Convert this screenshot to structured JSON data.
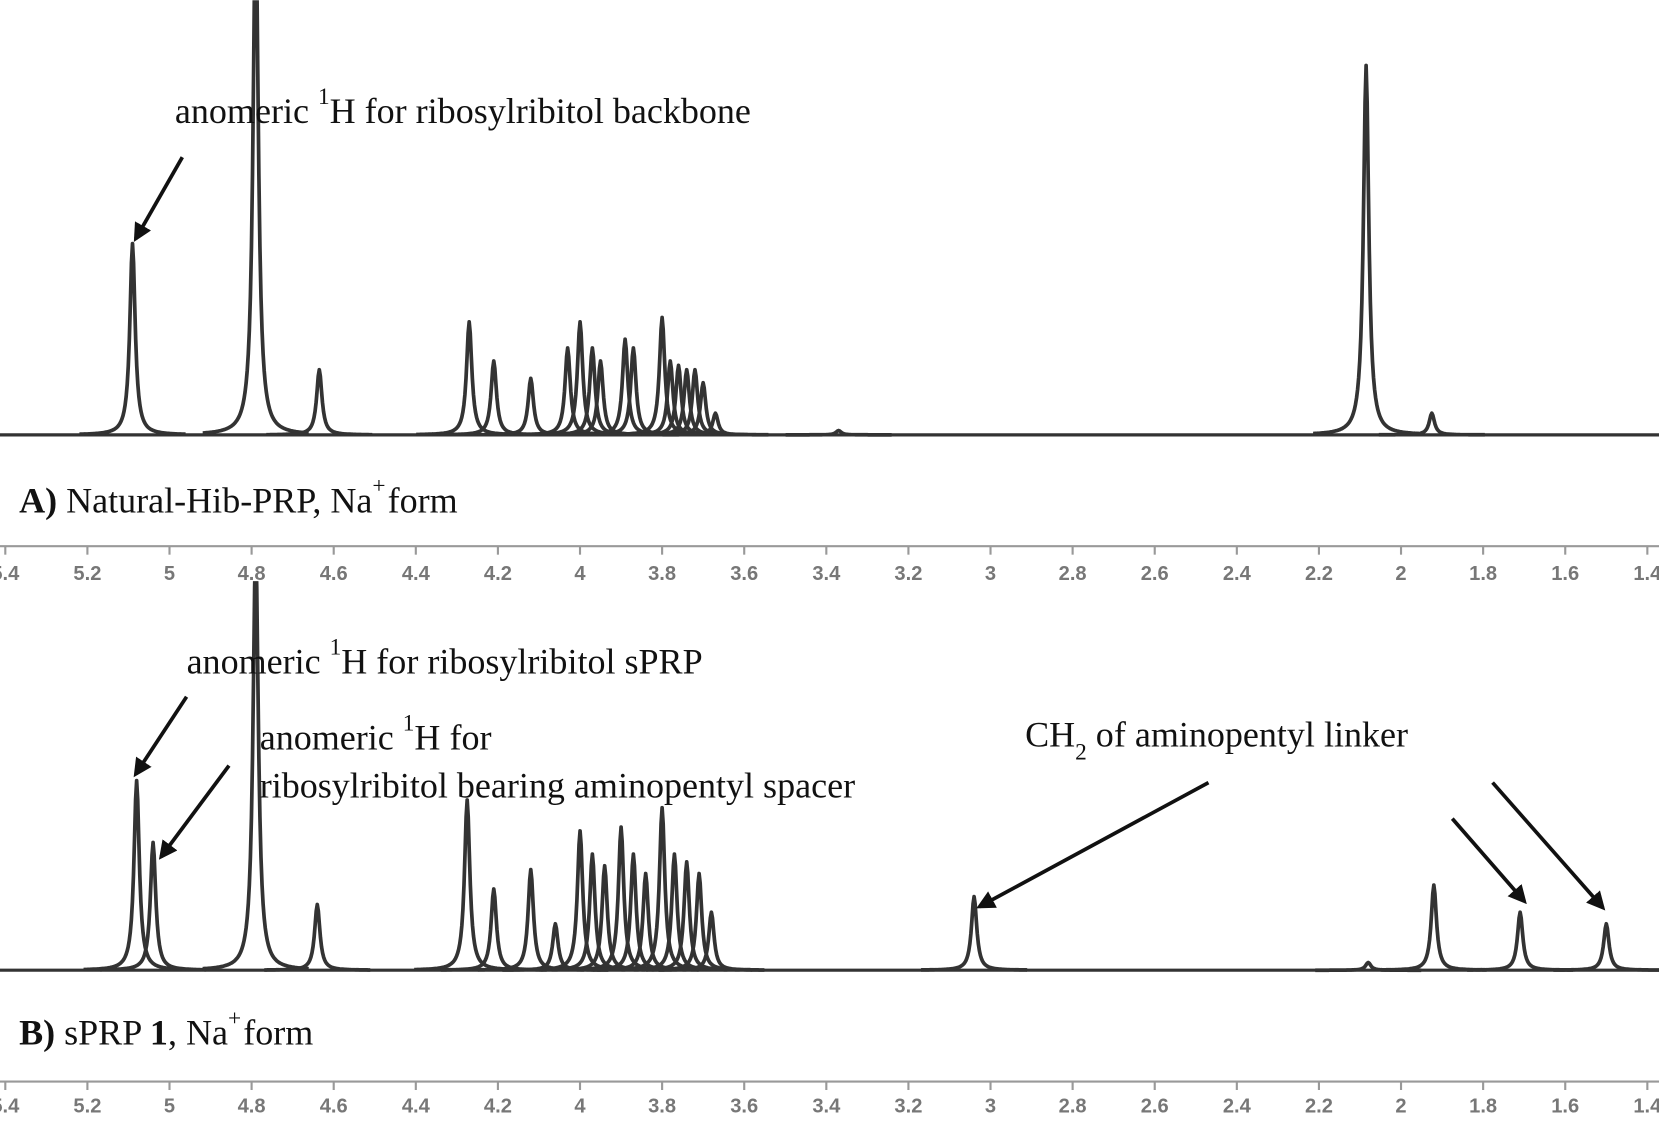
{
  "chart_data": [
    {
      "type": "spectrum",
      "x": [
        5.09,
        4.79,
        4.635,
        4.27,
        4.21,
        4.12,
        4.03,
        4.0,
        3.97,
        3.95,
        3.89,
        3.87,
        3.8,
        3.78,
        3.76,
        3.74,
        3.72,
        3.7,
        3.67,
        3.37,
        2.085,
        1.925
      ],
      "values": [
        44,
        120,
        15,
        26,
        17,
        13,
        20,
        26,
        20,
        17,
        22,
        20,
        27,
        17,
        16,
        15,
        15,
        12,
        5,
        1,
        85,
        5
      ],
      "color": "#333333",
      "xlim": [
        5.4,
        1.4
      ],
      "ylim": [
        0,
        100
      ],
      "xticks": [
        5.4,
        5.2,
        5.0,
        4.8,
        4.6,
        4.4,
        4.2,
        4.0,
        3.8,
        3.6,
        3.4,
        3.2,
        3.0,
        2.8,
        2.6,
        2.4,
        2.2,
        2.0,
        1.8,
        1.6,
        1.4
      ],
      "annotations": [
        {
          "text": "anomeric ",
          "sup": "1",
          "rest": "H for ribosylribitol backbone"
        }
      ],
      "label": {
        "bold": "A)",
        "text": " Natural-Hib-PRP, Na",
        "sup": "+",
        "rest": "form"
      }
    },
    {
      "type": "spectrum",
      "x": [
        5.08,
        5.04,
        4.79,
        4.64,
        4.275,
        4.21,
        4.12,
        4.06,
        4.0,
        3.97,
        3.94,
        3.9,
        3.87,
        3.84,
        3.8,
        3.77,
        3.74,
        3.71,
        3.68,
        3.04,
        2.08,
        1.92,
        1.71,
        1.5
      ],
      "values": [
        49,
        33,
        110,
        17,
        44,
        21,
        26,
        12,
        36,
        30,
        27,
        37,
        30,
        25,
        42,
        30,
        28,
        25,
        15,
        19,
        2,
        22,
        15,
        12
      ],
      "color": "#333333",
      "xlim": [
        5.4,
        1.4
      ],
      "ylim": [
        0,
        100
      ],
      "xticks": [
        5.4,
        5.2,
        5.0,
        4.8,
        4.6,
        4.4,
        4.2,
        4.0,
        3.8,
        3.6,
        3.4,
        3.2,
        3.0,
        2.8,
        2.6,
        2.4,
        2.2,
        2.0,
        1.8,
        1.6,
        1.4
      ],
      "annotations": [
        {
          "text": "anomeric ",
          "sup": "1",
          "rest": "H for ribosylribitol sPRP"
        },
        {
          "text": "anomeric ",
          "sup": "1",
          "rest": "H for"
        },
        {
          "text": "ribosylribitol bearing aminopentyl spacer"
        },
        {
          "text": "CH",
          "sub": "2",
          "rest": " of aminopentyl linker"
        }
      ],
      "label": {
        "bold": "B)",
        "text": " sPRP ",
        "bold2": "1",
        "text2": ", Na",
        "sup": "+",
        "rest": "form"
      }
    }
  ]
}
